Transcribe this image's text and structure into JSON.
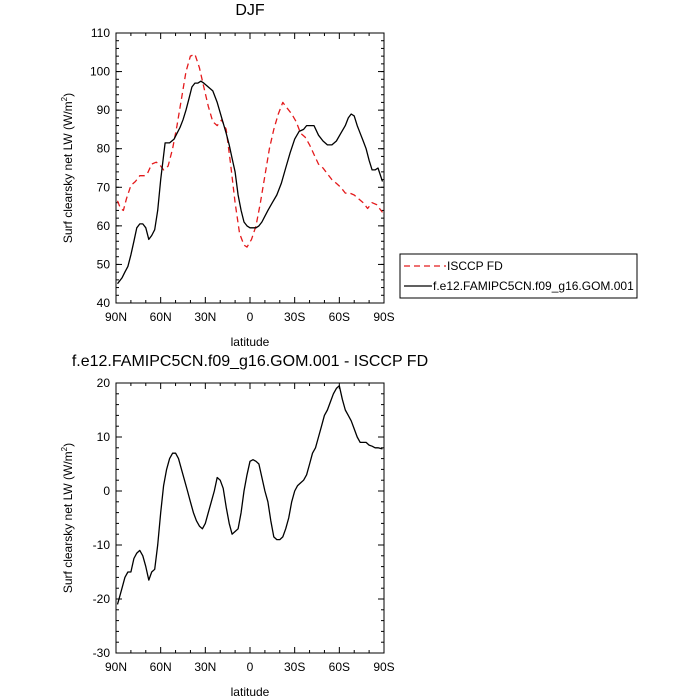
{
  "chart_data": [
    {
      "type": "line",
      "title": "DJF",
      "xlabel": "latitude",
      "ylabel": "Surf clearsky net LW (W/m",
      "ylabel_sup": "2",
      "ylabel_end": ")",
      "xlim": [
        90,
        -90
      ],
      "ylim": [
        40,
        110
      ],
      "xticks": [
        90,
        60,
        30,
        0,
        -30,
        -60,
        -90
      ],
      "xticklabels": [
        "90N",
        "60N",
        "30N",
        "0",
        "30S",
        "60S",
        "90S"
      ],
      "yticks": [
        40,
        50,
        60,
        70,
        80,
        90,
        100,
        110
      ],
      "yticklabels": [
        "40",
        "50",
        "60",
        "70",
        "80",
        "90",
        "100",
        "110"
      ],
      "legend": "right",
      "series": [
        {
          "name": "ISCCP FD",
          "color": "#e41a1c",
          "dash": "dashed",
          "x": [
            89,
            87,
            85,
            83,
            80,
            77,
            74,
            71,
            69,
            66,
            63,
            61,
            58,
            55,
            52,
            49,
            46,
            43,
            40,
            37,
            34,
            31,
            28,
            25,
            22,
            19,
            16,
            13,
            10,
            7,
            4,
            2,
            -1,
            -4,
            -7,
            -10,
            -13,
            -16,
            -19,
            -22,
            -25,
            -28,
            -31,
            -34,
            -37,
            -40,
            -43,
            -46,
            -49,
            -52,
            -55,
            -58,
            -61,
            -64,
            -67,
            -70,
            -73,
            -76,
            -79,
            -82,
            -85,
            -87,
            -89
          ],
          "y": [
            66.5,
            64.5,
            64,
            67,
            70.5,
            71.5,
            73,
            73,
            73.5,
            76,
            76.5,
            76,
            74.5,
            75.5,
            80,
            86,
            93,
            100,
            104,
            104.5,
            101,
            96,
            91,
            87,
            86,
            87.5,
            85,
            76,
            66,
            58,
            55,
            54.5,
            56.5,
            60,
            66,
            73,
            80,
            85,
            89,
            92,
            90.5,
            89,
            87,
            84,
            83,
            81,
            78.5,
            76,
            75,
            73.5,
            72,
            71,
            70,
            68.5,
            68.5,
            68,
            67,
            66,
            64.5,
            66,
            65.5,
            64.5,
            63.5
          ]
        },
        {
          "name": "f.e12.FAMIPC5CN.f09_g16.GOM.001",
          "color": "#000000",
          "dash": "solid",
          "x": [
            89,
            86,
            84,
            82,
            80,
            78,
            76,
            74,
            72,
            70,
            68,
            66,
            64,
            62,
            60,
            57,
            54,
            51,
            49,
            47,
            45,
            43,
            41,
            39,
            37,
            35,
            33,
            31,
            28,
            25,
            22,
            19,
            16,
            14,
            12,
            10,
            8,
            6,
            4,
            2,
            0,
            -2,
            -4,
            -6,
            -8,
            -10,
            -12,
            -15,
            -18,
            -21,
            -24,
            -27,
            -30,
            -33,
            -36,
            -38,
            -40,
            -43,
            -46,
            -49,
            -52,
            -55,
            -58,
            -61,
            -64,
            -66,
            -68,
            -70,
            -72,
            -74,
            -76,
            -78,
            -80,
            -82,
            -84,
            -86,
            -89
          ],
          "y": [
            45,
            46.5,
            48,
            49.5,
            52.5,
            56,
            59.5,
            60.5,
            60.5,
            59.5,
            56.5,
            57.5,
            59,
            64,
            72,
            81.5,
            81.5,
            82.5,
            84,
            85.5,
            87.5,
            90,
            93,
            96,
            97,
            97,
            97.5,
            97,
            96,
            95,
            92,
            88,
            84,
            81,
            77.5,
            74,
            68,
            64,
            61,
            60,
            59.5,
            59.5,
            59.5,
            60,
            61,
            62.5,
            64,
            66,
            68,
            71,
            75,
            79,
            82.5,
            84.5,
            85,
            86,
            86,
            86,
            83.5,
            82,
            81,
            81,
            82,
            84,
            86,
            88,
            89,
            88.5,
            86,
            84,
            82,
            80,
            77,
            74.5,
            74.5,
            75,
            71.5
          ]
        }
      ]
    },
    {
      "type": "line",
      "title": "f.e12.FAMIPC5CN.f09_g16.GOM.001 - ISCCP FD",
      "xlabel": "latitude",
      "ylabel": "Surf clearsky net LW (W/m",
      "ylabel_sup": "2",
      "ylabel_end": ")",
      "xlim": [
        90,
        -90
      ],
      "ylim": [
        -30,
        20
      ],
      "xticks": [
        90,
        60,
        30,
        0,
        -30,
        -60,
        -90
      ],
      "xticklabels": [
        "90N",
        "60N",
        "30N",
        "0",
        "30S",
        "60S",
        "90S"
      ],
      "yticks": [
        -30,
        -20,
        -10,
        0,
        10,
        20
      ],
      "yticklabels": [
        "-30",
        "-20",
        "-10",
        "0",
        "10",
        "20"
      ],
      "series": [
        {
          "color": "#000000",
          "dash": "solid",
          "x": [
            89,
            86,
            84,
            82,
            80,
            78,
            76,
            74,
            72,
            70,
            68,
            66,
            64,
            62,
            60,
            58,
            56,
            54,
            52,
            50,
            48,
            46,
            44,
            42,
            40,
            38,
            36,
            34,
            32,
            30,
            28,
            26,
            24,
            22,
            20,
            18,
            16,
            14,
            12,
            10,
            8,
            6,
            4,
            2,
            0,
            -2,
            -4,
            -6,
            -8,
            -10,
            -12,
            -14,
            -16,
            -18,
            -20,
            -22,
            -24,
            -26,
            -28,
            -30,
            -32,
            -34,
            -36,
            -38,
            -40,
            -42,
            -44,
            -46,
            -48,
            -50,
            -52,
            -54,
            -56,
            -58,
            -60,
            -62,
            -64,
            -66,
            -68,
            -70,
            -72,
            -74,
            -76,
            -78,
            -80,
            -82,
            -84,
            -86,
            -89
          ],
          "y": [
            -21,
            -18,
            -16,
            -15,
            -15,
            -12.5,
            -11.5,
            -11,
            -12,
            -14,
            -16.5,
            -15,
            -14.5,
            -10,
            -4,
            1,
            4,
            6,
            7,
            7,
            6,
            4,
            2,
            0,
            -2,
            -4,
            -5.5,
            -6.5,
            -7,
            -6,
            -4,
            -2,
            0,
            2.5,
            2,
            0.5,
            -3,
            -6,
            -8,
            -7.5,
            -7,
            -4,
            0,
            3,
            5.5,
            5.8,
            5.5,
            5,
            2.5,
            0,
            -2,
            -5.5,
            -8.5,
            -9,
            -9,
            -8.5,
            -7,
            -5,
            -2,
            0,
            1,
            1.5,
            2,
            3,
            5,
            7,
            8,
            10,
            12,
            14,
            15,
            16.5,
            18,
            19,
            19.5,
            17,
            15,
            14,
            13,
            11.5,
            10,
            9,
            9,
            9,
            8.5,
            8.3,
            8,
            8,
            7.8
          ]
        }
      ]
    }
  ]
}
